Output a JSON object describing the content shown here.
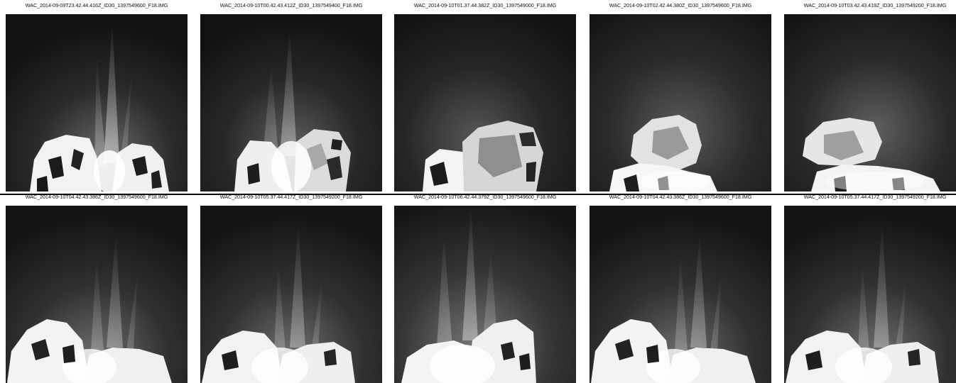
{
  "mosaic": {
    "images": [
      {
        "caption": "WAC_2014-09-09T23.42.44.416Z_ID30_1397549600_F18.IMG"
      },
      {
        "caption": "WAC_2014-09-10T00.42.43.412Z_ID30_1397549400_F18.IMG"
      },
      {
        "caption": "WAC_2014-09-10T01.37.44.382Z_ID30_1397549000_F18.IMG"
      },
      {
        "caption": "WAC_2014-09-10T02.42.44.380Z_ID30_1397549600_F18.IMG"
      },
      {
        "caption": "WAC_2014-09-10T03.42.43.419Z_ID30_1397549200_F18.IMG"
      },
      {
        "caption": "WAC_2014-09-10T04.42.43.386Z_ID30_1397549600_F18.IMG"
      },
      {
        "caption": "WAC_2014-09-10T05.37.44.417Z_ID30_1397549200_F18.IMG"
      },
      {
        "caption": "WAC_2014-09-10T06.42.44.379Z_ID30_1397549600_F18.IMG"
      },
      {
        "caption": "WAC_2014-09-10T04.42.43.386Z_ID30_1397549600_F18.IMG"
      },
      {
        "caption": "WAC_2014-09-10T05.37.44.417Z_ID30_1397549200_F18.IMG"
      }
    ]
  }
}
